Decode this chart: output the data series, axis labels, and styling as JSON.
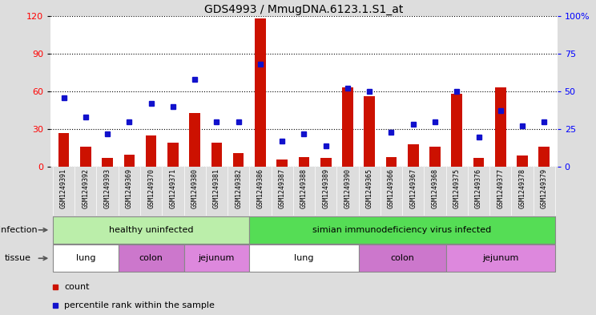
{
  "title": "GDS4993 / MmugDNA.6123.1.S1_at",
  "samples": [
    "GSM1249391",
    "GSM1249392",
    "GSM1249393",
    "GSM1249369",
    "GSM1249370",
    "GSM1249371",
    "GSM1249380",
    "GSM1249381",
    "GSM1249382",
    "GSM1249386",
    "GSM1249387",
    "GSM1249388",
    "GSM1249389",
    "GSM1249390",
    "GSM1249365",
    "GSM1249366",
    "GSM1249367",
    "GSM1249368",
    "GSM1249375",
    "GSM1249376",
    "GSM1249377",
    "GSM1249378",
    "GSM1249379"
  ],
  "counts": [
    27,
    16,
    7,
    10,
    25,
    19,
    43,
    19,
    11,
    118,
    6,
    8,
    7,
    63,
    56,
    8,
    18,
    16,
    58,
    7,
    63,
    9,
    16
  ],
  "percentiles": [
    46,
    33,
    22,
    30,
    42,
    40,
    58,
    30,
    30,
    68,
    17,
    22,
    14,
    52,
    50,
    23,
    28,
    30,
    50,
    20,
    37,
    27,
    30
  ],
  "ylim_left": [
    0,
    120
  ],
  "ylim_right": [
    0,
    100
  ],
  "yticks_left": [
    0,
    30,
    60,
    90,
    120
  ],
  "yticks_right": [
    0,
    25,
    50,
    75,
    100
  ],
  "ytick_labels_right": [
    "0",
    "25",
    "50",
    "75",
    "100%"
  ],
  "bar_color": "#cc1100",
  "dot_color": "#1111cc",
  "infection_groups": [
    {
      "label": "healthy uninfected",
      "start": 0,
      "end": 9,
      "color": "#bbeeaa"
    },
    {
      "label": "simian immunodeficiency virus infected",
      "start": 9,
      "end": 23,
      "color": "#55dd55"
    }
  ],
  "tissue_groups": [
    {
      "label": "lung",
      "start": 0,
      "end": 3,
      "color": "#ffffff"
    },
    {
      "label": "colon",
      "start": 3,
      "end": 6,
      "color": "#dd88dd"
    },
    {
      "label": "jejunum",
      "start": 6,
      "end": 9,
      "color": "#ee99ee"
    },
    {
      "label": "lung",
      "start": 9,
      "end": 14,
      "color": "#ffffff"
    },
    {
      "label": "colon",
      "start": 14,
      "end": 18,
      "color": "#dd88dd"
    },
    {
      "label": "jejunum",
      "start": 18,
      "end": 23,
      "color": "#ee99ee"
    }
  ],
  "bg_color": "#dddddd",
  "plot_bg": "#ffffff",
  "grid_color": "#000000",
  "label_fontsize": 8,
  "tick_fontsize": 8,
  "title_fontsize": 10,
  "xticklabel_fontsize": 6,
  "bar_width": 0.5
}
